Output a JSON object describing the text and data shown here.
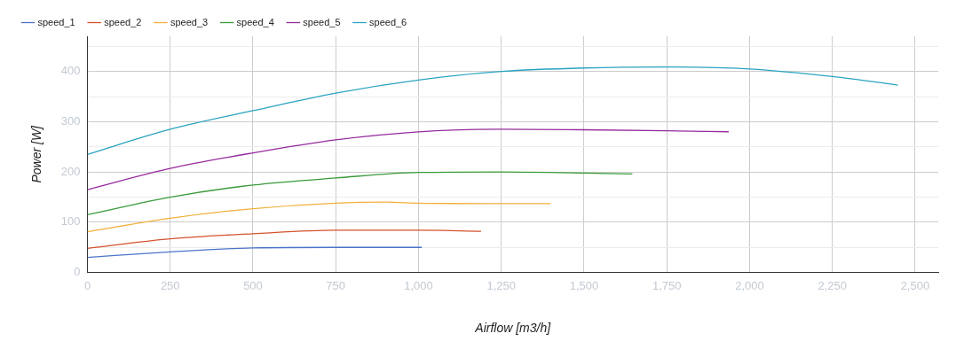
{
  "chart_data": {
    "type": "line",
    "xlabel": "Airflow [m3/h]",
    "ylabel": "Power [W]",
    "legend": "top left",
    "grid": true,
    "marker": "none",
    "line_style": "solid",
    "xlim": [
      0,
      2570
    ],
    "ylim": [
      0,
      470
    ],
    "xticks": [
      0,
      250,
      500,
      750,
      {
        "value": 1000,
        "label": "1,000"
      },
      {
        "value": 1250,
        "label": "1,250"
      },
      {
        "value": 1500,
        "label": "1,500"
      },
      {
        "value": 1750,
        "label": "1,750"
      },
      {
        "value": 2000,
        "label": "2,000"
      },
      {
        "value": 2250,
        "label": "2,250"
      },
      {
        "value": 2500,
        "label": "2,500"
      }
    ],
    "yticks": [
      0,
      {
        "value": 50,
        "label": null
      },
      100,
      {
        "value": 150,
        "label": null
      },
      200,
      {
        "value": 250,
        "label": null
      },
      300,
      {
        "value": 350,
        "label": null
      },
      400,
      {
        "value": 450,
        "label": null
      }
    ],
    "series": [
      {
        "name": "speed_1",
        "color": "#4a74c9",
        "x": [
          0,
          250,
          500,
          750,
          1010
        ],
        "values": [
          30,
          41,
          49,
          50,
          50
        ]
      },
      {
        "name": "speed_2",
        "color": "#d4522f",
        "x": [
          0,
          250,
          500,
          750,
          1000,
          1189
        ],
        "values": [
          48,
          67,
          77,
          84,
          84,
          82
        ]
      },
      {
        "name": "speed_3",
        "color": "#f1b03a",
        "x": [
          0,
          250,
          500,
          750,
          900,
          1000,
          1250,
          1399
        ],
        "values": [
          81,
          108,
          127,
          138,
          140,
          138,
          137,
          137
        ]
      },
      {
        "name": "speed_4",
        "color": "#3a9a3a",
        "x": [
          0,
          250,
          500,
          750,
          1000,
          1250,
          1500,
          1646
        ],
        "values": [
          115,
          150,
          174,
          188,
          199,
          200,
          198,
          196
        ]
      },
      {
        "name": "speed_5",
        "color": "#952a9c",
        "x": [
          0,
          250,
          500,
          750,
          1000,
          1250,
          1500,
          1750,
          1937
        ],
        "values": [
          165,
          207,
          238,
          264,
          280,
          285,
          284,
          282,
          280
        ]
      },
      {
        "name": "speed_6",
        "color": "#2aa3c0",
        "x": [
          0,
          250,
          500,
          750,
          1000,
          1250,
          1500,
          1750,
          2000,
          2250,
          2448
        ],
        "values": [
          235,
          285,
          322,
          357,
          383,
          400,
          407,
          409,
          405,
          390,
          373
        ]
      }
    ]
  }
}
